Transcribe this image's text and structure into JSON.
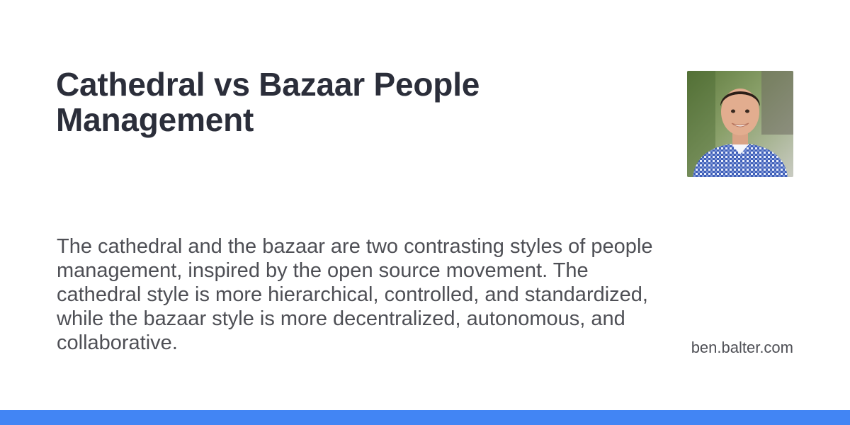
{
  "card": {
    "title": "Cathedral vs Bazaar People Management",
    "description": "The cathedral and the bazaar are two contrasting styles of people management, inspired by the open source movement. The cathedral style is more hierarchical, controlled, and standardized, while the bazaar style is more decentralized, autonomous, and collaborative.",
    "site": "ben.balter.com",
    "avatar_icon": "author-photo",
    "colors": {
      "background": "#ffffff",
      "title": "#2b2e3a",
      "text": "#4e4f55",
      "accent": "#4285f4"
    }
  }
}
